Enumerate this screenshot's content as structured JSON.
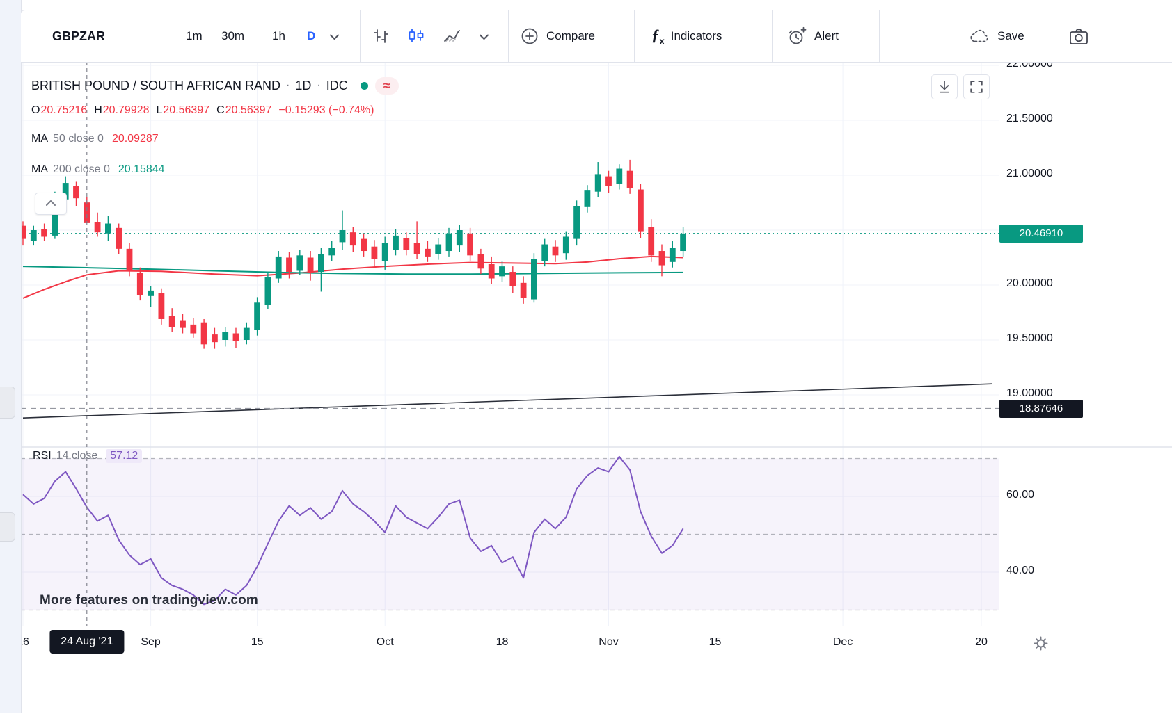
{
  "toolbar": {
    "symbol": "GBPZAR",
    "intervals": [
      "1m",
      "30m",
      "1h",
      "D"
    ],
    "compare_label": "Compare",
    "indicators_label": "Indicators",
    "alert_label": "Alert",
    "save_label": "Save"
  },
  "legend": {
    "title": "BRITISH POUND / SOUTH AFRICAN RAND",
    "separator": "·",
    "interval": "1D",
    "exchange": "IDC",
    "approx_badge": "≈",
    "ohlc": {
      "o_label": "O",
      "o": "20.75216",
      "h_label": "H",
      "h": "20.79928",
      "l_label": "L",
      "l": "20.56397",
      "c_label": "C",
      "c": "20.56397",
      "change": "−0.15293 (−0.74%)"
    },
    "ma50": {
      "name": "MA",
      "params": "50 close 0",
      "value": "20.09287"
    },
    "ma200": {
      "name": "MA",
      "params": "200 close 0",
      "value": "20.15844"
    }
  },
  "rsi_legend": {
    "name": "RSI",
    "params": "14 close",
    "value": "57.12"
  },
  "axis": {
    "last_price_label": "20.46910",
    "level_label": "18.87646",
    "crosshair_date": "24 Aug '21"
  },
  "watermark": "More features on tradingview.com",
  "colors": {
    "up": "#089981",
    "down": "#f23645",
    "accent": "#2962ff",
    "rsi": "#7e57c2"
  },
  "chart_data": {
    "type": "candlestick",
    "title": "GBPZAR · 1D · IDC with MA50, MA200 and RSI(14)",
    "price_axis_range_visible": [
      18.55,
      22.05
    ],
    "price_gridlines": [
      22.0,
      21.5,
      21.0,
      20.5,
      20.0,
      19.5,
      19.0
    ],
    "price_tick_labels": [
      22.0,
      21.5,
      21.0,
      20.0,
      19.5,
      19.0
    ],
    "last_price": 20.4691,
    "level_price": 18.87646,
    "trendline": {
      "from": {
        "i": 0,
        "price": 18.79
      },
      "to": {
        "i": 91,
        "price": 19.1
      }
    },
    "crosshair_index": 6,
    "time_labels": [
      {
        "label": "16",
        "i": 0
      },
      {
        "label": "Sep",
        "i": 12
      },
      {
        "label": "15",
        "i": 22
      },
      {
        "label": "Oct",
        "i": 34
      },
      {
        "label": "18",
        "i": 45
      },
      {
        "label": "Nov",
        "i": 55
      },
      {
        "label": "15",
        "i": 65
      },
      {
        "label": "Dec",
        "i": 77
      },
      {
        "label": "20",
        "i": 90
      }
    ],
    "candles": [
      [
        20.54,
        20.58,
        20.36,
        20.42
      ],
      [
        20.4,
        20.54,
        20.36,
        20.5
      ],
      [
        20.51,
        20.56,
        20.4,
        20.44
      ],
      [
        20.45,
        20.85,
        20.42,
        20.79
      ],
      [
        20.78,
        20.99,
        20.74,
        20.93
      ],
      [
        20.9,
        20.94,
        20.72,
        20.79
      ],
      [
        20.75216,
        20.79928,
        20.56397,
        20.56397
      ],
      [
        20.57,
        20.66,
        20.44,
        20.48
      ],
      [
        20.47,
        20.63,
        20.4,
        20.56
      ],
      [
        20.52,
        20.56,
        20.28,
        20.33
      ],
      [
        20.33,
        20.38,
        20.08,
        20.13
      ],
      [
        20.11,
        20.16,
        19.86,
        19.91
      ],
      [
        19.9,
        19.99,
        19.8,
        19.95
      ],
      [
        19.93,
        19.97,
        19.64,
        19.69
      ],
      [
        19.72,
        19.79,
        19.57,
        19.62
      ],
      [
        19.68,
        19.74,
        19.56,
        19.61
      ],
      [
        19.64,
        19.7,
        19.52,
        19.56
      ],
      [
        19.66,
        19.69,
        19.42,
        19.46
      ],
      [
        19.55,
        19.61,
        19.42,
        19.48
      ],
      [
        19.5,
        19.62,
        19.44,
        19.57
      ],
      [
        19.56,
        19.61,
        19.43,
        19.49
      ],
      [
        19.5,
        19.66,
        19.46,
        19.61
      ],
      [
        19.59,
        19.89,
        19.54,
        19.84
      ],
      [
        19.82,
        20.12,
        19.78,
        20.07
      ],
      [
        20.06,
        20.31,
        20.02,
        20.26
      ],
      [
        20.25,
        20.3,
        20.06,
        20.12
      ],
      [
        20.13,
        20.32,
        20.09,
        20.27
      ],
      [
        20.25,
        20.31,
        20.04,
        20.11
      ],
      [
        20.12,
        20.34,
        19.94,
        20.28
      ],
      [
        20.27,
        20.4,
        20.22,
        20.34
      ],
      [
        20.39,
        20.68,
        20.32,
        20.5
      ],
      [
        20.48,
        20.53,
        20.3,
        20.36
      ],
      [
        20.42,
        20.47,
        20.26,
        20.31
      ],
      [
        20.35,
        20.41,
        20.16,
        20.24
      ],
      [
        20.22,
        20.44,
        20.14,
        20.38
      ],
      [
        20.32,
        20.51,
        20.27,
        20.45
      ],
      [
        20.43,
        20.48,
        20.27,
        20.32
      ],
      [
        20.38,
        20.58,
        20.24,
        20.28
      ],
      [
        20.33,
        20.4,
        20.21,
        20.26
      ],
      [
        20.28,
        20.43,
        20.23,
        20.37
      ],
      [
        20.31,
        20.52,
        20.26,
        20.47
      ],
      [
        20.36,
        20.55,
        20.3,
        20.5
      ],
      [
        20.47,
        20.52,
        20.22,
        20.27
      ],
      [
        20.28,
        20.33,
        20.1,
        20.15
      ],
      [
        20.19,
        20.26,
        20.01,
        20.06
      ],
      [
        20.08,
        20.22,
        20.03,
        20.17
      ],
      [
        20.12,
        20.17,
        19.93,
        19.99
      ],
      [
        20.02,
        20.08,
        19.83,
        19.88
      ],
      [
        19.87,
        20.29,
        19.84,
        20.24
      ],
      [
        20.22,
        20.42,
        20.17,
        20.37
      ],
      [
        20.35,
        20.41,
        20.21,
        20.27
      ],
      [
        20.29,
        20.49,
        20.23,
        20.44
      ],
      [
        20.42,
        20.77,
        20.36,
        20.72
      ],
      [
        20.71,
        20.91,
        20.66,
        20.86
      ],
      [
        20.85,
        21.12,
        20.8,
        21.01
      ],
      [
        20.99,
        21.04,
        20.84,
        20.9
      ],
      [
        20.92,
        21.1,
        20.87,
        21.06
      ],
      [
        21.04,
        21.14,
        20.83,
        20.88
      ],
      [
        20.87,
        20.92,
        20.43,
        20.49
      ],
      [
        20.53,
        20.6,
        20.21,
        20.27
      ],
      [
        20.31,
        20.37,
        20.08,
        20.18
      ],
      [
        20.21,
        20.4,
        20.16,
        20.34
      ],
      [
        20.31,
        20.53,
        20.26,
        20.4691
      ]
    ],
    "ma50": [
      [
        0,
        19.88
      ],
      [
        2,
        19.96
      ],
      [
        4,
        20.03
      ],
      [
        6,
        20.093
      ],
      [
        9,
        20.13
      ],
      [
        13,
        20.125
      ],
      [
        18,
        20.1
      ],
      [
        22,
        20.085
      ],
      [
        26,
        20.11
      ],
      [
        30,
        20.145
      ],
      [
        34,
        20.17
      ],
      [
        38,
        20.19
      ],
      [
        42,
        20.205
      ],
      [
        46,
        20.2
      ],
      [
        50,
        20.195
      ],
      [
        53,
        20.21
      ],
      [
        56,
        20.24
      ],
      [
        59,
        20.26
      ],
      [
        62,
        20.25
      ]
    ],
    "ma200": [
      [
        0,
        20.17
      ],
      [
        6,
        20.158
      ],
      [
        12,
        20.145
      ],
      [
        18,
        20.13
      ],
      [
        24,
        20.115
      ],
      [
        30,
        20.105
      ],
      [
        36,
        20.1
      ],
      [
        42,
        20.1
      ],
      [
        48,
        20.105
      ],
      [
        54,
        20.11
      ],
      [
        62,
        20.115
      ]
    ],
    "rsi": {
      "upper": 70,
      "middle": 50,
      "lower": 30,
      "tick_labels": [
        60,
        40
      ],
      "values": [
        60.5,
        58,
        59.5,
        64,
        66.5,
        62,
        57.12,
        53.5,
        55,
        48.5,
        44.5,
        42,
        43.5,
        38.5,
        36.5,
        35.5,
        34,
        31.5,
        32.5,
        35.5,
        34,
        36.5,
        41.5,
        47.5,
        53.5,
        57.5,
        55,
        57,
        54,
        56,
        61.5,
        58,
        56,
        53.5,
        50.5,
        57.5,
        54.5,
        53,
        51.5,
        54.5,
        58,
        59,
        49,
        45.5,
        47,
        42.5,
        44,
        38.5,
        50.5,
        54,
        51.5,
        54.5,
        62,
        65.5,
        67.5,
        66.5,
        70.5,
        67,
        56,
        49.5,
        45,
        47,
        51.5
      ]
    }
  }
}
